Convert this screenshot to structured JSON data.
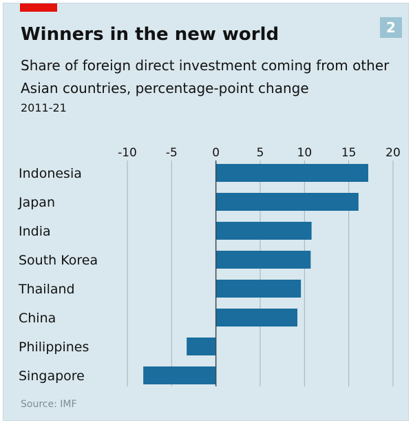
{
  "header": {
    "title": "Winners in the new world",
    "subtitle": "Share of foreign direct investment coming from other Asian countries, percentage-point change",
    "period": "2011-21",
    "badge": "2"
  },
  "footer": {
    "source": "Source: IMF"
  },
  "colors": {
    "bar": "#1a6d9d",
    "background": "#d9e8ee",
    "grid": "#9fb2bb",
    "accent": "#e3120b",
    "badge": "#9bc3d3"
  },
  "chart_data": {
    "type": "bar",
    "orientation": "horizontal",
    "title": "Winners in the new world",
    "subtitle": "Share of foreign direct investment coming from other Asian countries, percentage-point change",
    "period": "2011-21",
    "categories": [
      "Indonesia",
      "Japan",
      "India",
      "South Korea",
      "Thailand",
      "China",
      "Philippines",
      "Singapore"
    ],
    "values": [
      17.2,
      16.1,
      10.8,
      10.7,
      9.6,
      9.2,
      -3.3,
      -8.2
    ],
    "xlim": [
      -10,
      20
    ],
    "ticks": [
      "-10",
      "-5",
      "0",
      "5",
      "10",
      "15",
      "20"
    ],
    "tick_values": [
      -10,
      -5,
      0,
      5,
      10,
      15,
      20
    ],
    "grid": true,
    "source": "Source: IMF"
  }
}
